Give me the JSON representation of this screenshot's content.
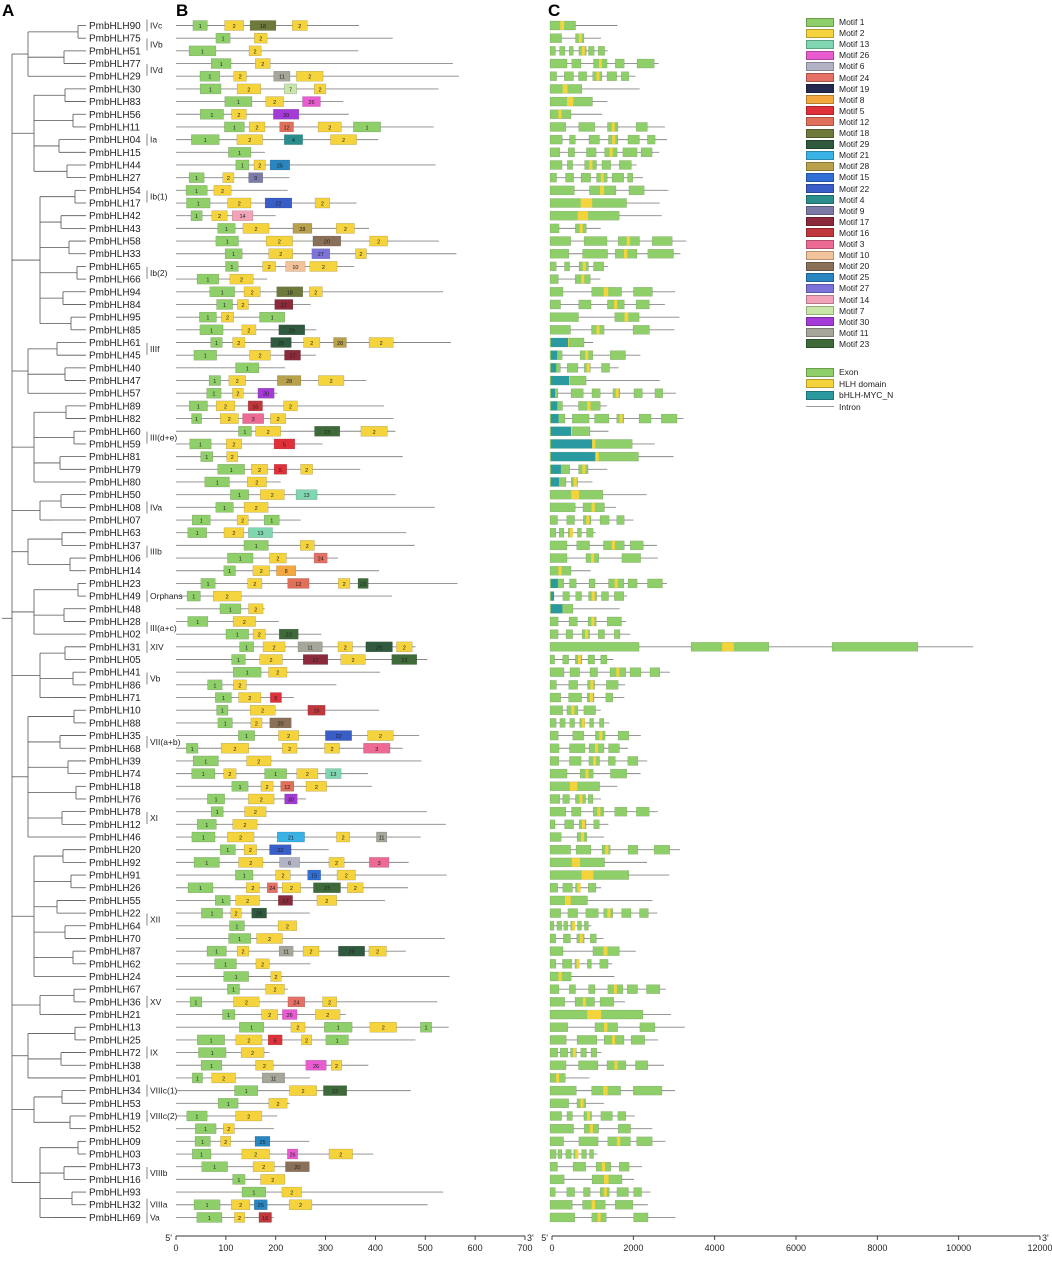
{
  "panels": {
    "a": "A",
    "b": "B",
    "c": "C"
  },
  "genes": [
    "PmbHLH90",
    "PmbHLH75",
    "PmbHLH51",
    "PmbHLH77",
    "PmbHLH29",
    "PmbHLH30",
    "PmbHLH83",
    "PmbHLH56",
    "PmbHLH11",
    "PmbHLH04",
    "PmbHLH15",
    "PmbHLH44",
    "PmbHLH27",
    "PmbHLH54",
    "PmbHLH17",
    "PmbHLH42",
    "PmbHLH43",
    "PmbHLH58",
    "PmbHLH33",
    "PmbHLH65",
    "PmbHLH66",
    "PmbHLH94",
    "PmbHLH84",
    "PmbHLH95",
    "PmbHLH85",
    "PmbHLH61",
    "PmbHLH45",
    "PmbHLH40",
    "PmbHLH47",
    "PmbHLH57",
    "PmbHLH89",
    "PmbHLH82",
    "PmbHLH60",
    "PmbHLH59",
    "PmbHLH81",
    "PmbHLH79",
    "PmbHLH80",
    "PmbHLH50",
    "PmbHLH08",
    "PmbHLH07",
    "PmbHLH63",
    "PmbHLH37",
    "PmbHLH06",
    "PmbHLH14",
    "PmbHLH23",
    "PmbHLH49",
    "PmbHLH48",
    "PmbHLH28",
    "PmbHLH02",
    "PmbHLH31",
    "PmbHLH05",
    "PmbHLH41",
    "PmbHLH86",
    "PmbHLH71",
    "PmbHLH10",
    "PmbHLH88",
    "PmbHLH35",
    "PmbHLH68",
    "PmbHLH39",
    "PmbHLH74",
    "PmbHLH18",
    "PmbHLH76",
    "PmbHLH78",
    "PmbHLH12",
    "PmbHLH46",
    "PmbHLH20",
    "PmbHLH92",
    "PmbHLH91",
    "PmbHLH26",
    "PmbHLH55",
    "PmbHLH22",
    "PmbHLH64",
    "PmbHLH70",
    "PmbHLH87",
    "PmbHLH62",
    "PmbHLH24",
    "PmbHLH67",
    "PmbHLH36",
    "PmbHLH21",
    "PmbHLH13",
    "PmbHLH25",
    "PmbHLH72",
    "PmbHLH38",
    "PmbHLH01",
    "PmbHLH34",
    "PmbHLH53",
    "PmbHLH19",
    "PmbHLH52",
    "PmbHLH09",
    "PmbHLH03",
    "PmbHLH73",
    "PmbHLH16",
    "PmbHLH93",
    "PmbHLH32",
    "PmbHLH69"
  ],
  "subfamilies": [
    {
      "label": "IVc",
      "row": 0
    },
    {
      "label": "IVb",
      "row": 1.5
    },
    {
      "label": "IVd",
      "row": 3.5
    },
    {
      "label": "Ia",
      "row": 9
    },
    {
      "label": "Ib(1)",
      "row": 13.5
    },
    {
      "label": "Ib(2)",
      "row": 19.5
    },
    {
      "label": "IIIf",
      "row": 25.5
    },
    {
      "label": "III(d+e)",
      "row": 32.5
    },
    {
      "label": "IVa",
      "row": 38
    },
    {
      "label": "IIIb",
      "row": 41.5
    },
    {
      "label": "Orphans",
      "row": 45
    },
    {
      "label": "III(a+c)",
      "row": 47.5
    },
    {
      "label": "XIV",
      "row": 49
    },
    {
      "label": "Vb",
      "row": 51.5
    },
    {
      "label": "VII(a+b)",
      "row": 56.5
    },
    {
      "label": "XI",
      "row": 62.5
    },
    {
      "label": "XII",
      "row": 70.5
    },
    {
      "label": "XV",
      "row": 77
    },
    {
      "label": "IX",
      "row": 81
    },
    {
      "label": "VIIIc(1)",
      "row": 84
    },
    {
      "label": "VIIIc(2)",
      "row": 86
    },
    {
      "label": "VIIIb",
      "row": 90.5
    },
    {
      "label": "VIIIa",
      "row": 93
    },
    {
      "label": "Va",
      "row": 94
    }
  ],
  "motif_axis": {
    "ticks": [
      "0",
      "100",
      "200",
      "300",
      "400",
      "500",
      "600",
      "700"
    ],
    "start": "5'",
    "end": "3'"
  },
  "gene_axis": {
    "ticks": [
      "0",
      "2000",
      "4000",
      "6000",
      "8000",
      "10000",
      "12000"
    ],
    "start": "5'",
    "end": "3'"
  },
  "legend": {
    "motifs": [
      {
        "label": "Motif 1",
        "color": "#8fcf6a"
      },
      {
        "label": "Motif 2",
        "color": "#f5d33c"
      },
      {
        "label": "Motif 13",
        "color": "#7fd6b0"
      },
      {
        "label": "Motif 26",
        "color": "#e95bd0"
      },
      {
        "label": "Motif 6",
        "color": "#b3b3c6"
      },
      {
        "label": "Motif 24",
        "color": "#e57066"
      },
      {
        "label": "Motif 19",
        "color": "#25294f"
      },
      {
        "label": "Motif 8",
        "color": "#f4a93f"
      },
      {
        "label": "Motif 5",
        "color": "#e0303a"
      },
      {
        "label": "Motif 12",
        "color": "#e0705a"
      },
      {
        "label": "Motif 18",
        "color": "#6e7a3b"
      },
      {
        "label": "Motif 29",
        "color": "#2f5a3e"
      },
      {
        "label": "Motif 21",
        "color": "#3bb2e6"
      },
      {
        "label": "Motif 28",
        "color": "#b8a14a"
      },
      {
        "label": "Motif 15",
        "color": "#2f6fd6"
      },
      {
        "label": "Motif 22",
        "color": "#3a5ec8"
      },
      {
        "label": "Motif 4",
        "color": "#2a8f8c"
      },
      {
        "label": "Motif 9",
        "color": "#7c7aa6"
      },
      {
        "label": "Motif 17",
        "color": "#8a2a3a"
      },
      {
        "label": "Motif 16",
        "color": "#c0383e"
      },
      {
        "label": "Motif 3",
        "color": "#ec6a93"
      },
      {
        "label": "Motif 10",
        "color": "#f2c29a"
      },
      {
        "label": "Motif 20",
        "color": "#8a7058"
      },
      {
        "label": "Motif 25",
        "color": "#2a86c0"
      },
      {
        "label": "Motif 27",
        "color": "#7b73d9"
      },
      {
        "label": "Motif 14",
        "color": "#f2a3b8"
      },
      {
        "label": "Motif 7",
        "color": "#c8e6a8"
      },
      {
        "label": "Motif 30",
        "color": "#a43bd6"
      },
      {
        "label": "Motif 11",
        "color": "#a6a69a"
      },
      {
        "label": "Motif 23",
        "color": "#3e6a3a"
      }
    ],
    "structure": [
      {
        "label": "Exon",
        "color": "#8fcf6a"
      },
      {
        "label": "HLH domain",
        "color": "#f5d33c"
      },
      {
        "label": "bHLH-MYC_N",
        "color": "#2a9aa0"
      },
      {
        "label": "Intron",
        "color": "#999999"
      }
    ]
  },
  "colors": {
    "tree": "#555555",
    "backbone": "#888888",
    "exon": "#8fcf6a",
    "hlh": "#f5d33c",
    "myc": "#2a9aa0"
  }
}
